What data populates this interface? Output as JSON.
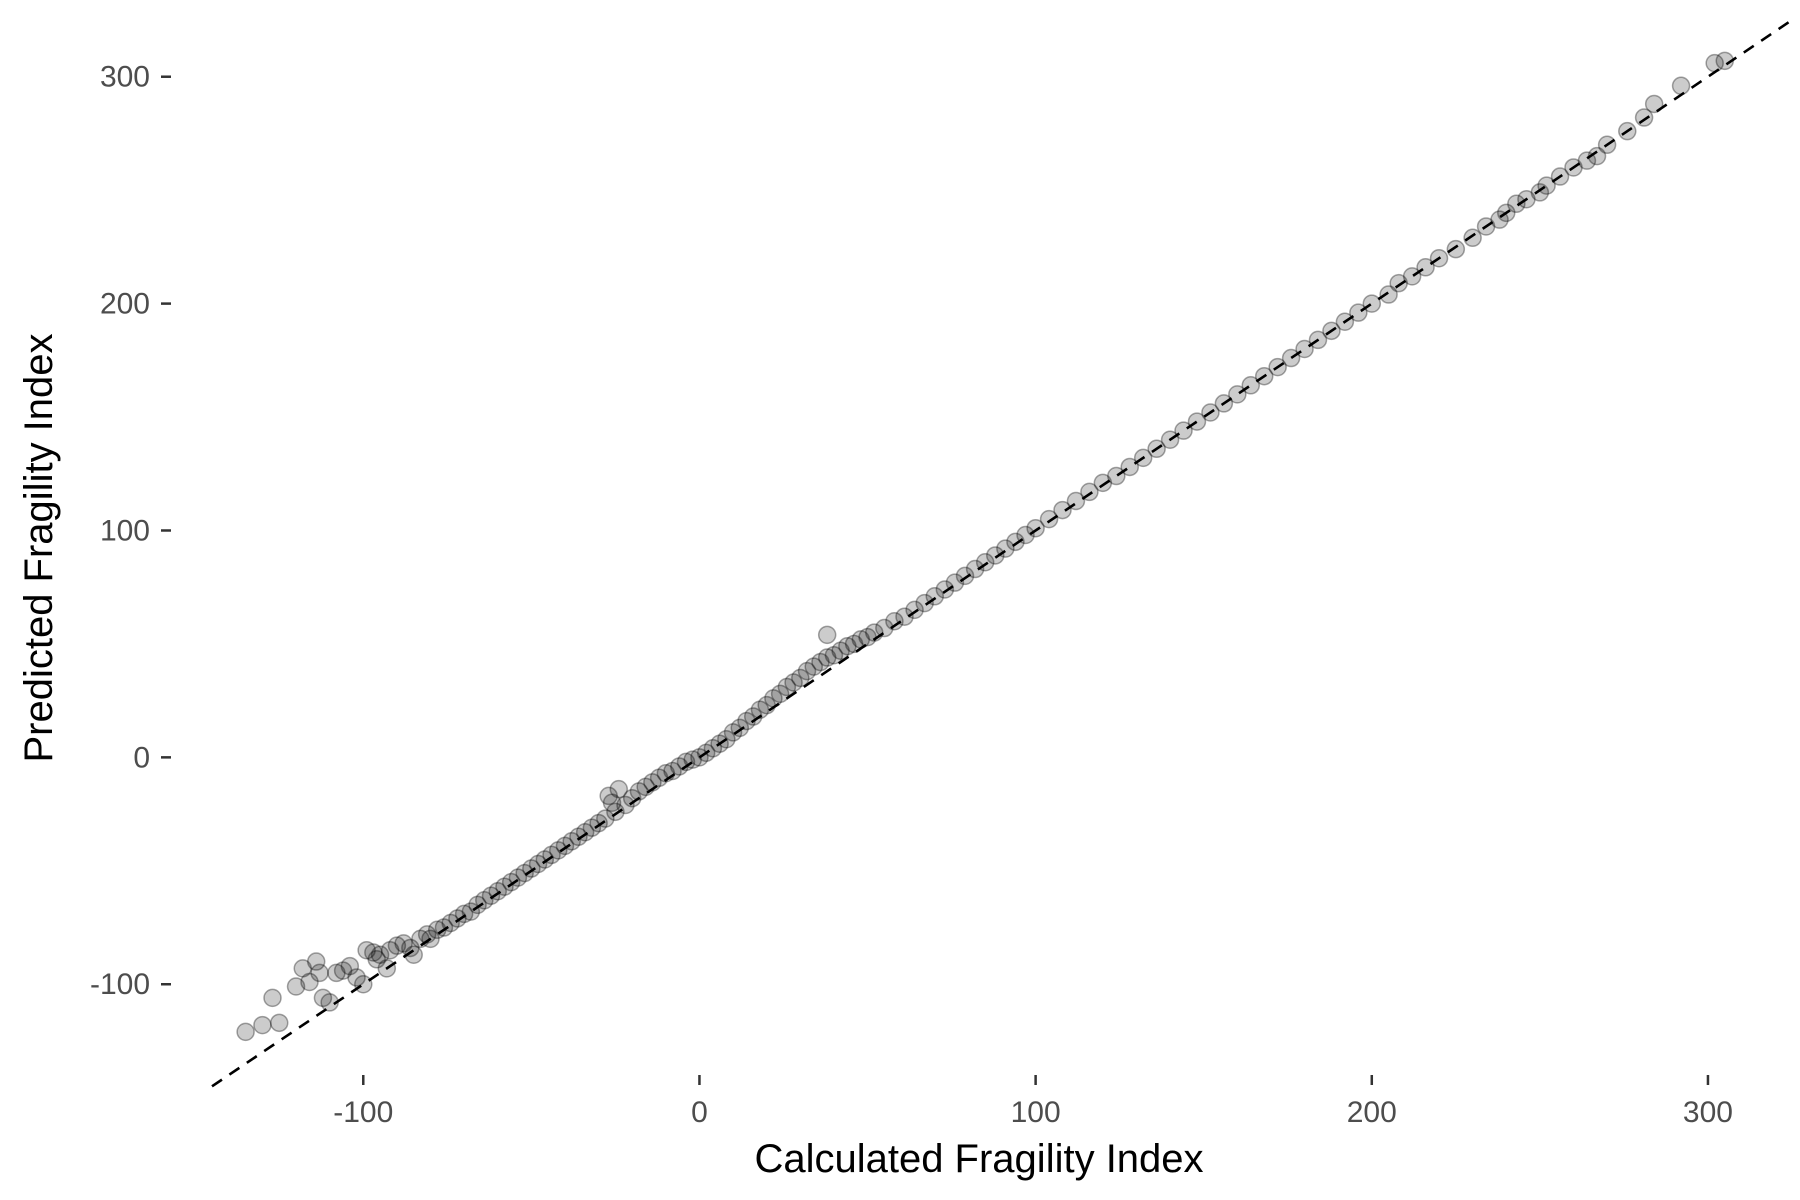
{
  "chart_data": {
    "type": "scatter",
    "title": "",
    "xlabel": "Calculated Fragility Index",
    "ylabel": "Predicted Fragility Index",
    "xlim": [
      -145,
      325
    ],
    "ylim": [
      -140,
      325
    ],
    "x_ticks": [
      -100,
      0,
      100,
      200,
      300
    ],
    "y_ticks": [
      -100,
      0,
      100,
      200,
      300
    ],
    "grid": false,
    "legend": "none",
    "point_color": "#000000",
    "point_opacity": 0.2,
    "reference_line": {
      "style": "dashed",
      "color": "#000000",
      "slope": 1,
      "intercept": 0
    },
    "series": [
      {
        "x": [
          -135,
          -130,
          -127,
          -125,
          -120,
          -118,
          -116,
          -114,
          -113,
          -112,
          -110,
          -108,
          -106,
          -104,
          -102,
          -100,
          -99,
          -97,
          -96,
          -95,
          -93,
          -92,
          -90,
          -88,
          -86,
          -85,
          -83,
          -81,
          -80,
          -78,
          -76,
          -74,
          -72,
          -70,
          -68,
          -66,
          -64,
          -62,
          -60,
          -58,
          -56,
          -54,
          -52,
          -50,
          -48,
          -46,
          -44,
          -42,
          -40,
          -38,
          -36,
          -34,
          -32,
          -30,
          -28,
          -27,
          -26,
          -25,
          -24,
          -22,
          -20,
          -18,
          -16,
          -14,
          -12,
          -10,
          -8,
          -6,
          -4,
          -2,
          0,
          2,
          4,
          6,
          8,
          10,
          12,
          14,
          16,
          18,
          20,
          22,
          24,
          26,
          28,
          30,
          32,
          34,
          36,
          38,
          38,
          40,
          42,
          44,
          46,
          48,
          50,
          52,
          55,
          58,
          61,
          64,
          67,
          70,
          73,
          76,
          79,
          82,
          85,
          88,
          91,
          94,
          97,
          100,
          104,
          108,
          112,
          116,
          120,
          124,
          128,
          132,
          136,
          140,
          144,
          148,
          152,
          156,
          160,
          164,
          168,
          172,
          176,
          180,
          184,
          188,
          192,
          196,
          200,
          205,
          208,
          212,
          216,
          220,
          225,
          230,
          234,
          238,
          240,
          243,
          246,
          250,
          252,
          256,
          260,
          264,
          267,
          270,
          276,
          281,
          284,
          292,
          302,
          305
        ],
        "y": [
          -121,
          -118,
          -106,
          -117,
          -101,
          -93,
          -99,
          -90,
          -95,
          -106,
          -108,
          -95,
          -94,
          -92,
          -97,
          -100,
          -85,
          -86,
          -89,
          -87,
          -93,
          -85,
          -83,
          -82,
          -84,
          -87,
          -80,
          -78,
          -80,
          -76,
          -75,
          -73,
          -71,
          -69,
          -68,
          -65,
          -63,
          -61,
          -59,
          -57,
          -55,
          -53,
          -51,
          -49,
          -47,
          -45,
          -43,
          -41,
          -39,
          -37,
          -35,
          -33,
          -31,
          -29,
          -27,
          -17,
          -20,
          -24,
          -14,
          -21,
          -18,
          -15,
          -13,
          -11,
          -9,
          -7,
          -6,
          -4,
          -2,
          -1,
          0,
          2,
          4,
          6,
          8,
          11,
          13,
          16,
          18,
          21,
          23,
          26,
          28,
          31,
          33,
          35,
          38,
          40,
          42,
          44,
          54,
          45,
          47,
          49,
          50,
          52,
          53,
          55,
          57,
          60,
          62,
          65,
          68,
          71,
          74,
          77,
          80,
          83,
          86,
          89,
          92,
          95,
          98,
          101,
          105,
          109,
          113,
          117,
          121,
          124,
          128,
          132,
          136,
          140,
          144,
          148,
          152,
          156,
          160,
          164,
          168,
          172,
          176,
          180,
          184,
          188,
          192,
          196,
          200,
          204,
          209,
          212,
          216,
          220,
          224,
          229,
          234,
          237,
          240,
          244,
          246,
          249,
          252,
          256,
          260,
          263,
          265,
          270,
          276,
          282,
          288,
          296,
          306,
          307
        ]
      }
    ]
  }
}
